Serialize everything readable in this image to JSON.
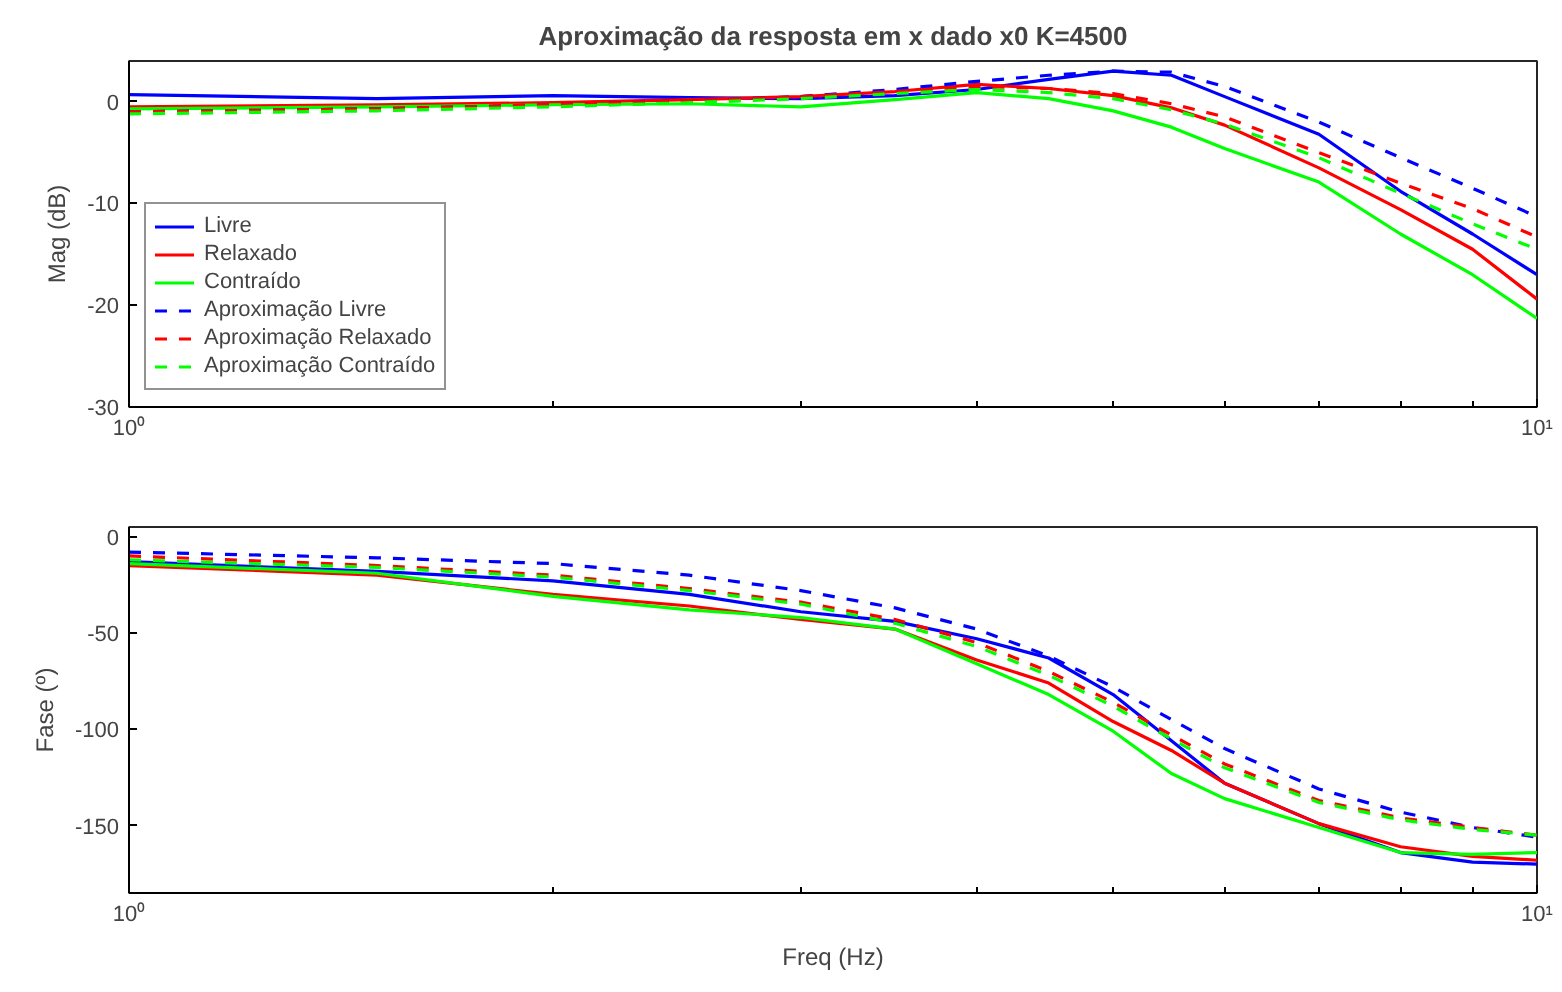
{
  "chart_data": [
    {
      "type": "line",
      "title": "Aproximação da resposta em x dado x0 K=4500",
      "ylabel": "Mag (dB)",
      "log": "x",
      "x": [
        1,
        1.5,
        2,
        2.5,
        3,
        3.5,
        4,
        4.5,
        5,
        5.5,
        6,
        7,
        8,
        9,
        10
      ],
      "xlim": [
        1,
        10
      ],
      "xticks": [
        {
          "value": 1,
          "label": "10⁰"
        },
        {
          "value": 2,
          "label": null
        },
        {
          "value": 3,
          "label": null
        },
        {
          "value": 4,
          "label": null
        },
        {
          "value": 5,
          "label": null
        },
        {
          "value": 6,
          "label": null
        },
        {
          "value": 7,
          "label": null
        },
        {
          "value": 8,
          "label": null
        },
        {
          "value": 9,
          "label": null
        },
        {
          "value": 10,
          "label": "10¹"
        }
      ],
      "ylim": [
        -30,
        4
      ],
      "yticks": [
        -30,
        -20,
        -10,
        0
      ],
      "grid": false,
      "legend": "bottom left",
      "series": [
        {
          "name": "Livre",
          "color": "#0000ff",
          "line_style": "solid",
          "values": [
            0.7,
            0.3,
            0.6,
            0.4,
            0.3,
            0.6,
            1.2,
            2.2,
            3,
            2.6,
            0.5,
            -3.2,
            -8.8,
            -13,
            -17
          ]
        },
        {
          "name": "Relaxado",
          "color": "#ff0000",
          "line_style": "solid",
          "values": [
            -0.5,
            -0.3,
            -0.1,
            0.2,
            0.5,
            1,
            1.7,
            1.3,
            0.6,
            -0.6,
            -2.3,
            -6.5,
            -10.6,
            -14.5,
            -19.4
          ]
        },
        {
          "name": "Contraído",
          "color": "#00ff00",
          "line_style": "solid",
          "values": [
            -0.7,
            -0.5,
            -0.3,
            -0.2,
            -0.5,
            0.2,
            0.9,
            0.3,
            -0.9,
            -2.5,
            -4.6,
            -7.9,
            -13,
            -17,
            -21.3
          ]
        },
        {
          "name": "Aproximação Livre",
          "color": "#0000ff",
          "line_style": "dashed",
          "values": [
            -1,
            -0.7,
            -0.3,
            0.1,
            0.5,
            1.2,
            2,
            2.6,
            3,
            2.9,
            1.5,
            -2,
            -5.5,
            -8.5,
            -11.3
          ]
        },
        {
          "name": "Aproximação Relaxado",
          "color": "#ff0000",
          "line_style": "dashed",
          "values": [
            -1,
            -0.7,
            -0.3,
            0.1,
            0.5,
            1,
            1.5,
            1.3,
            0.8,
            -0.2,
            -1.5,
            -5,
            -8,
            -10.5,
            -13.3
          ]
        },
        {
          "name": "Aproximação Contraído",
          "color": "#00ff00",
          "line_style": "dashed",
          "values": [
            -1.2,
            -0.9,
            -0.5,
            -0.1,
            0.3,
            0.8,
            1.2,
            0.9,
            0.3,
            -0.8,
            -2.2,
            -5.5,
            -9,
            -12,
            -14.5
          ]
        }
      ]
    },
    {
      "type": "line",
      "xlabel": "Freq (Hz)",
      "ylabel": "Fase (º)",
      "log": "x",
      "x": [
        1,
        1.5,
        2,
        2.5,
        3,
        3.5,
        4,
        4.5,
        5,
        5.5,
        6,
        7,
        8,
        9,
        10
      ],
      "xlim": [
        1,
        10
      ],
      "xticks": [
        {
          "value": 1,
          "label": "10⁰"
        },
        {
          "value": 2,
          "label": null
        },
        {
          "value": 3,
          "label": null
        },
        {
          "value": 4,
          "label": null
        },
        {
          "value": 5,
          "label": null
        },
        {
          "value": 6,
          "label": null
        },
        {
          "value": 7,
          "label": null
        },
        {
          "value": 8,
          "label": null
        },
        {
          "value": 9,
          "label": null
        },
        {
          "value": 10,
          "label": "10¹"
        }
      ],
      "ylim": [
        -185,
        5
      ],
      "yticks": [
        -150,
        -100,
        -50,
        0
      ],
      "grid": false,
      "legend": false,
      "series": [
        {
          "color": "#0000ff",
          "line_style": "solid",
          "values": [
            -13,
            -18,
            -23,
            -30,
            -39,
            -44,
            -53,
            -63,
            -82,
            -106,
            -128,
            -149,
            -164,
            -169,
            -170
          ]
        },
        {
          "color": "#ff0000",
          "line_style": "solid",
          "values": [
            -15,
            -20,
            -30,
            -36,
            -43,
            -48,
            -64,
            -76,
            -96,
            -111,
            -128,
            -149,
            -161,
            -166,
            -168
          ]
        },
        {
          "color": "#00ff00",
          "line_style": "solid",
          "values": [
            -14,
            -19,
            -31,
            -38,
            -42,
            -48,
            -66,
            -82,
            -101,
            -123,
            -136,
            -151,
            -164,
            -165,
            -164
          ]
        },
        {
          "color": "#0000ff",
          "line_style": "dashed",
          "values": [
            -8,
            -11,
            -14,
            -20,
            -28,
            -37,
            -48,
            -62,
            -78,
            -95,
            -110,
            -131,
            -143,
            -151,
            -156
          ]
        },
        {
          "color": "#ff0000",
          "line_style": "dashed",
          "values": [
            -10,
            -15,
            -20,
            -27,
            -34,
            -43,
            -55,
            -70,
            -86,
            -103,
            -118,
            -137,
            -146,
            -151,
            -155
          ]
        },
        {
          "color": "#00ff00",
          "line_style": "dashed",
          "values": [
            -12,
            -16,
            -21,
            -28,
            -35,
            -45,
            -57,
            -72,
            -88,
            -105,
            -120,
            -138,
            -147,
            -152,
            -155
          ]
        }
      ]
    }
  ]
}
